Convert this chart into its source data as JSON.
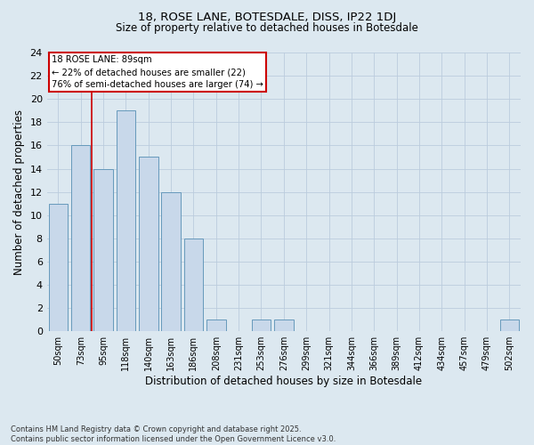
{
  "title_line1": "18, ROSE LANE, BOTESDALE, DISS, IP22 1DJ",
  "title_line2": "Size of property relative to detached houses in Botesdale",
  "xlabel": "Distribution of detached houses by size in Botesdale",
  "ylabel": "Number of detached properties",
  "categories": [
    "50sqm",
    "73sqm",
    "95sqm",
    "118sqm",
    "140sqm",
    "163sqm",
    "186sqm",
    "208sqm",
    "231sqm",
    "253sqm",
    "276sqm",
    "299sqm",
    "321sqm",
    "344sqm",
    "366sqm",
    "389sqm",
    "412sqm",
    "434sqm",
    "457sqm",
    "479sqm",
    "502sqm"
  ],
  "values": [
    11,
    16,
    14,
    19,
    15,
    12,
    8,
    1,
    0,
    1,
    1,
    0,
    0,
    0,
    0,
    0,
    0,
    0,
    0,
    0,
    1
  ],
  "bar_color": "#c8d8ea",
  "bar_edge_color": "#6699bb",
  "bar_edge_width": 0.7,
  "grid_color": "#bbccdd",
  "background_color": "#dce8f0",
  "plot_bg_color": "#dce8f0",
  "ylim": [
    0,
    24
  ],
  "yticks": [
    0,
    2,
    4,
    6,
    8,
    10,
    12,
    14,
    16,
    18,
    20,
    22,
    24
  ],
  "reference_line_x": 1.5,
  "annotation_text_line1": "18 ROSE LANE: 89sqm",
  "annotation_text_line2": "← 22% of detached houses are smaller (22)",
  "annotation_text_line3": "76% of semi-detached houses are larger (74) →",
  "annotation_box_color": "#ffffff",
  "annotation_box_edge": "#cc0000",
  "ref_line_color": "#cc0000",
  "footnote": "Contains HM Land Registry data © Crown copyright and database right 2025.\nContains public sector information licensed under the Open Government Licence v3.0."
}
